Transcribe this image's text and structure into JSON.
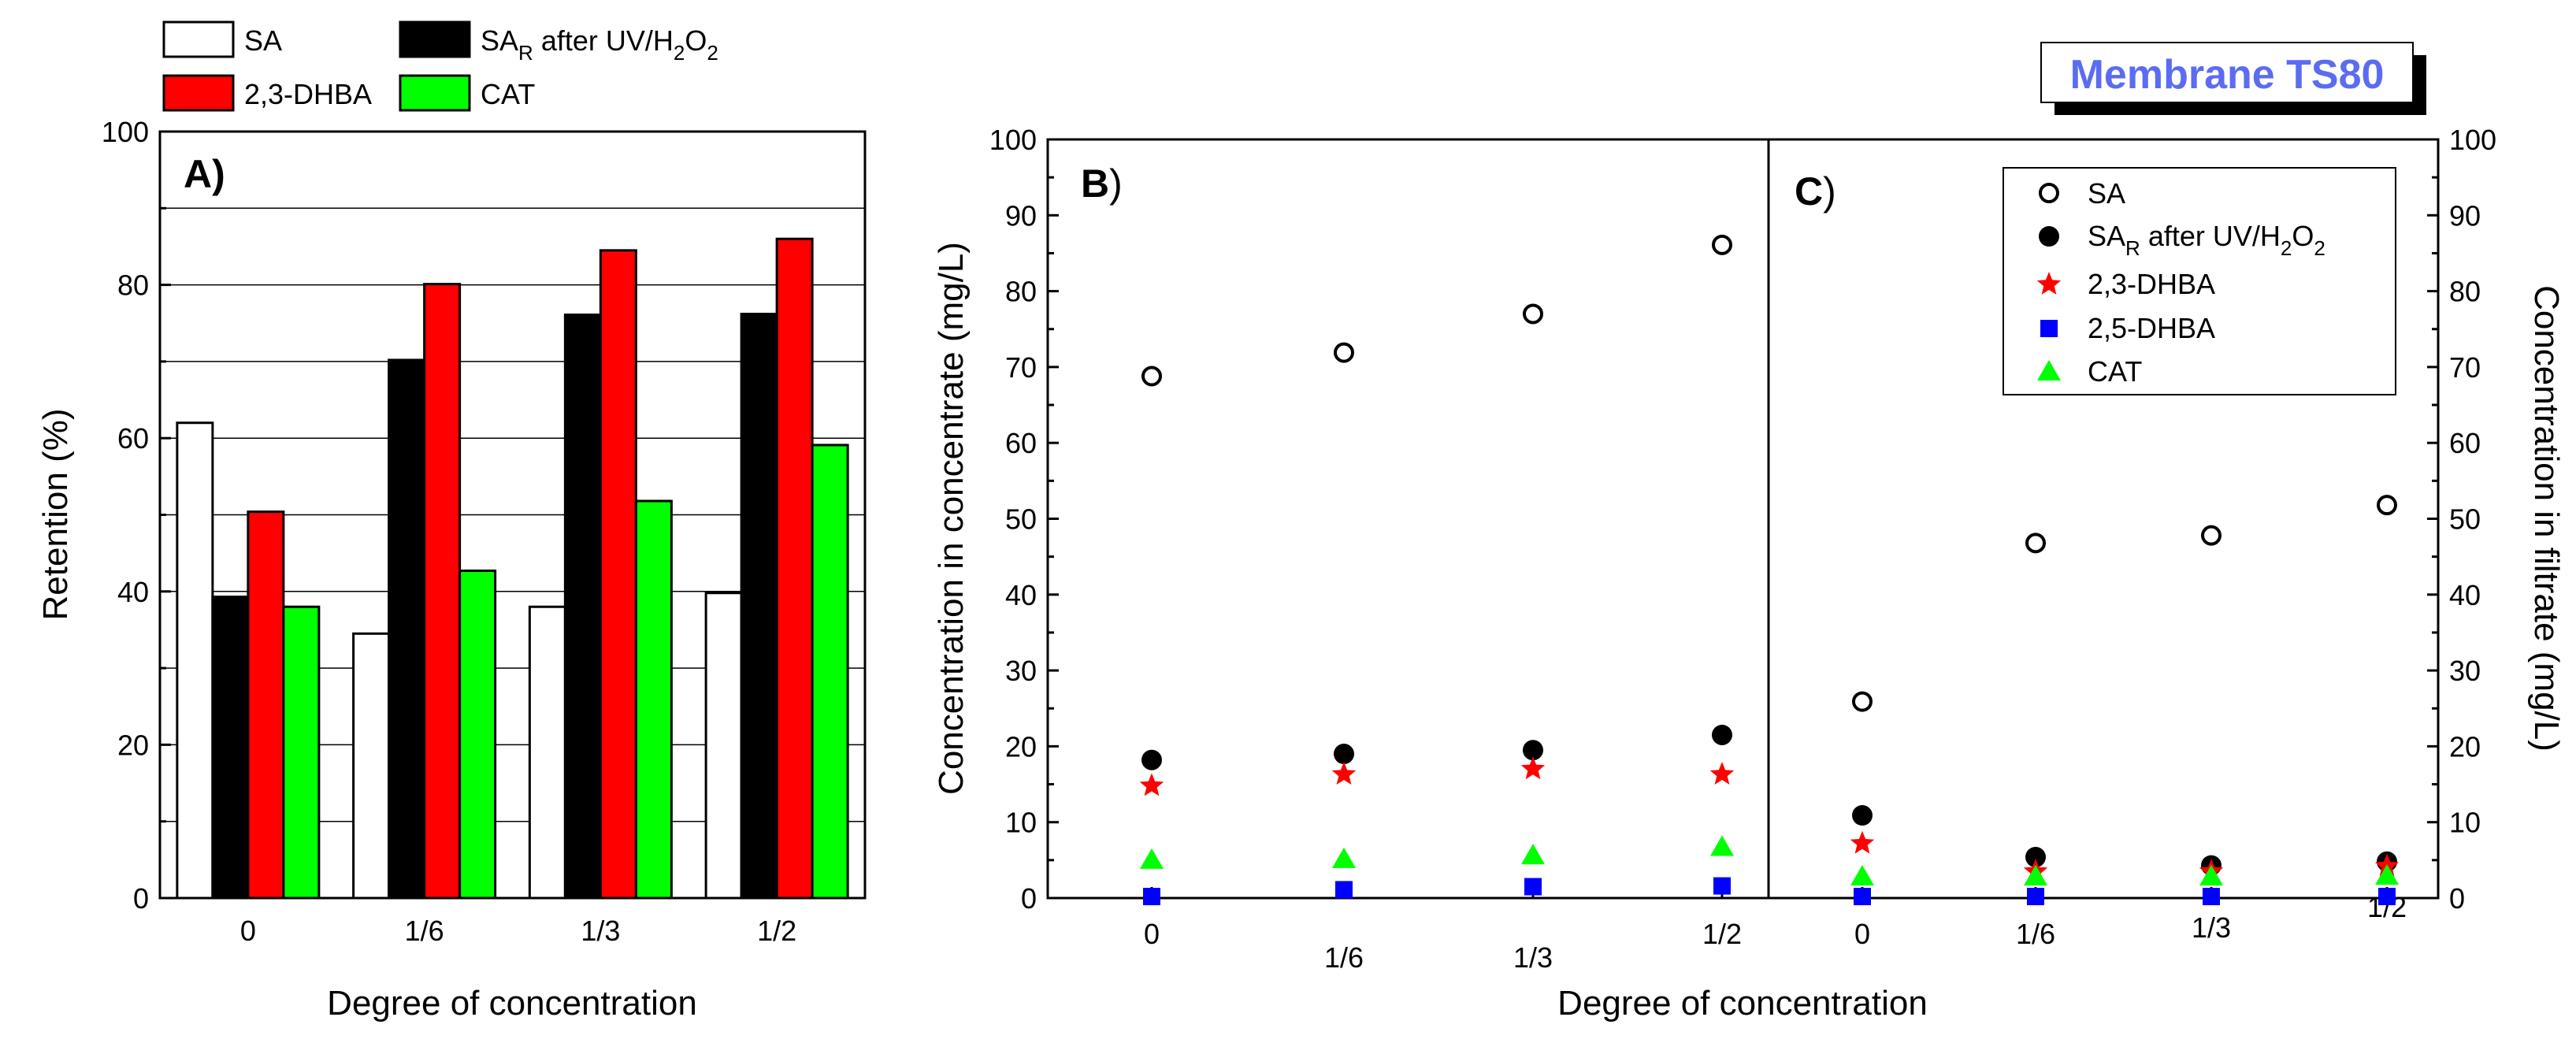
{
  "chart_data": [
    {
      "id": "A",
      "panel_label": "A)",
      "type": "bar",
      "categories": [
        "0",
        "1/6",
        "1/3",
        "1/2"
      ],
      "series": [
        {
          "name": "SA",
          "color": "#ffffff",
          "values": [
            62,
            34.5,
            38,
            39.8
          ]
        },
        {
          "name": "SA_R after UV/H2O2",
          "label_main": "SA",
          "label_sub": "R",
          "label_rest": " after UV/H",
          "label_sub2": "2",
          "label_mid": "O",
          "label_sub3": "2",
          "color": "#000000",
          "values": [
            39.3,
            70.2,
            76.1,
            76.2
          ]
        },
        {
          "name": "2,3-DHBA",
          "color": "#ff0000",
          "values": [
            50.4,
            80.1,
            84.5,
            86
          ]
        },
        {
          "name": "CAT",
          "color": "#00ff00",
          "values": [
            38,
            42.7,
            51.8,
            59.1
          ]
        }
      ],
      "xlabel": "Degree of concentration",
      "ylabel": "Retention (%)",
      "ylim": [
        0,
        100
      ],
      "yticks": [
        "0",
        "20",
        "40",
        "60",
        "80",
        "100"
      ],
      "grid": true
    },
    {
      "id": "B",
      "panel_label": "B",
      "panel_paren": ")",
      "type": "scatter",
      "x": [
        "0",
        "1/6",
        "1/3",
        "1/2"
      ],
      "series": [
        {
          "name": "SA",
          "marker": "open-circle",
          "color": "#000000",
          "values": [
            68.8,
            71.9,
            77,
            86.1
          ]
        },
        {
          "name": "SA_R after UV/H2O2",
          "marker": "filled-circle",
          "color": "#000000",
          "values": [
            18.2,
            19,
            19.5,
            21.5
          ]
        },
        {
          "name": "2,3-DHBA",
          "marker": "star",
          "color": "#ff0000",
          "values": [
            14.8,
            16.3,
            17,
            16.3
          ]
        },
        {
          "name": "2,5-DHBA",
          "marker": "square",
          "color": "#0000ff",
          "values": [
            0.2,
            1.1,
            1.5,
            1.6
          ]
        },
        {
          "name": "CAT",
          "marker": "triangle",
          "color": "#00ff00",
          "values": [
            5,
            5.1,
            5.6,
            6.7
          ]
        }
      ],
      "ylabel": "Concentration in concentrate (mg/L)",
      "ylim": [
        0,
        100
      ],
      "yticks": [
        "0",
        "10",
        "20",
        "30",
        "40",
        "50",
        "60",
        "70",
        "80",
        "90",
        "100"
      ]
    },
    {
      "id": "C",
      "panel_label": "C",
      "panel_paren": ")",
      "type": "scatter",
      "x": [
        "0",
        "1/6",
        "1/3",
        "1/2"
      ],
      "series": [
        {
          "name": "SA",
          "marker": "open-circle",
          "color": "#000000",
          "values": [
            25.9,
            46.8,
            47.8,
            51.8
          ]
        },
        {
          "name": "SA_R after UV/H2O2",
          "marker": "filled-circle",
          "color": "#000000",
          "values": [
            10.9,
            5.4,
            4.3,
            4.8
          ]
        },
        {
          "name": "2,3-DHBA",
          "marker": "star",
          "color": "#ff0000",
          "values": [
            7.2,
            3.5,
            3.5,
            4.2
          ]
        },
        {
          "name": "2,5-DHBA",
          "marker": "square",
          "color": "#0000ff",
          "values": [
            0.2,
            0.2,
            0.2,
            0.2
          ]
        },
        {
          "name": "CAT",
          "marker": "triangle",
          "color": "#00ff00",
          "values": [
            2.8,
            2.8,
            2.8,
            2.9
          ]
        }
      ],
      "ylabel": "Concentration in filtrate (mg/L)",
      "ylim": [
        0,
        100
      ],
      "yticks": [
        "0",
        "10",
        "20",
        "30",
        "40",
        "50",
        "60",
        "70",
        "80",
        "90",
        "100"
      ]
    }
  ],
  "shared_xlabel_BC": "Degree of concentration",
  "title_box": "Membrane TS80",
  "title_color": "#5b6cf2",
  "legend_C": [
    {
      "main": "SA"
    },
    {
      "main": "SA",
      "sub": "R",
      "rest": " after UV/H",
      "sub2": "2",
      "mid": "O",
      "sub3": "2"
    },
    {
      "main": "2,3-DHBA"
    },
    {
      "main": "2,5-DHBA"
    },
    {
      "main": "CAT"
    }
  ]
}
